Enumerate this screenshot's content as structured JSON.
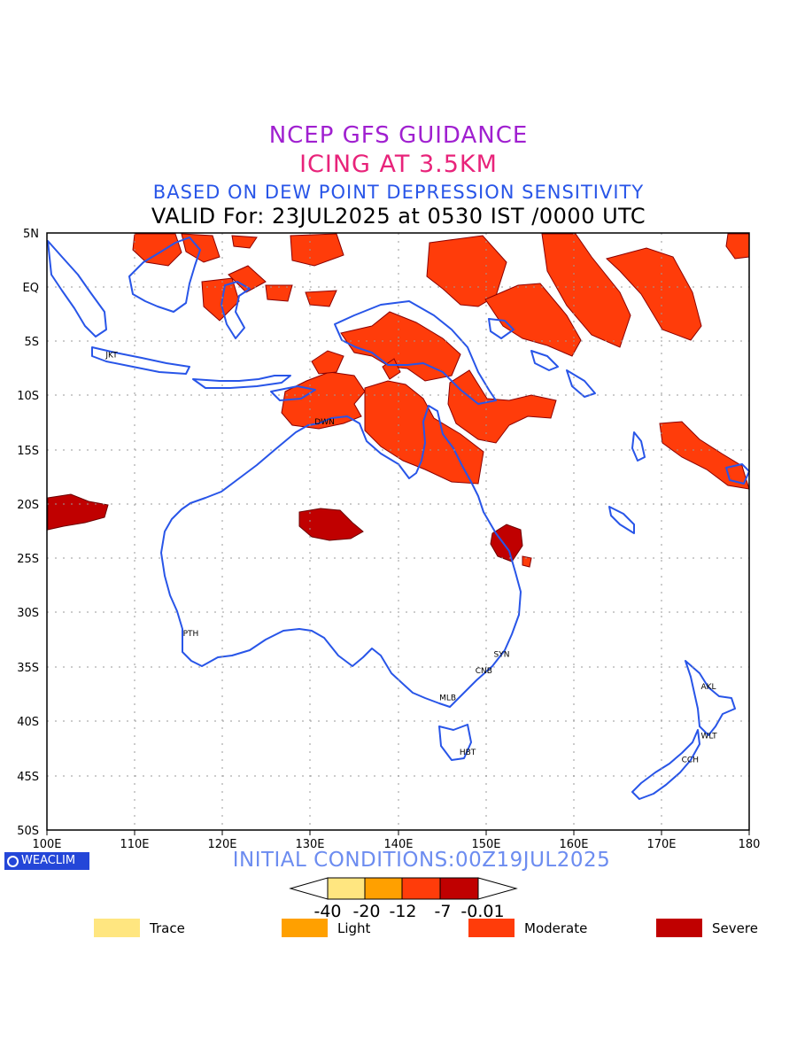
{
  "titles": {
    "line1": "NCEP GFS GUIDANCE",
    "line2": "ICING AT 3.5KM",
    "line3": "BASED ON DEW POINT DEPRESSION SENSITIVITY",
    "line4": "VALID For: 23JUL2025 at 0530 IST /0000 UTC"
  },
  "axes": {
    "x_ticks": [
      "100E",
      "110E",
      "120E",
      "130E",
      "140E",
      "150E",
      "160E",
      "170E",
      "180"
    ],
    "y_ticks": [
      "5N",
      "EQ",
      "5S",
      "10S",
      "15S",
      "20S",
      "25S",
      "30S",
      "35S",
      "40S",
      "45S",
      "50S"
    ]
  },
  "cities": [
    {
      "code": "JKT",
      "lon": 107.0,
      "lat": -6.2
    },
    {
      "code": "DWN",
      "lon": 130.8,
      "lat": -12.4
    },
    {
      "code": "PTH",
      "lon": 115.8,
      "lat": -31.9
    },
    {
      "code": "SYN",
      "lon": 151.2,
      "lat": -33.8
    },
    {
      "code": "CNB",
      "lon": 149.1,
      "lat": -35.3
    },
    {
      "code": "MLB",
      "lon": 145.0,
      "lat": -37.8
    },
    {
      "code": "HBT",
      "lon": 147.3,
      "lat": -42.8
    },
    {
      "code": "AKL",
      "lon": 174.8,
      "lat": -36.8
    },
    {
      "code": "WLT",
      "lon": 174.8,
      "lat": -41.3
    },
    {
      "code": "CCH",
      "lon": 172.6,
      "lat": -43.5
    }
  ],
  "footer": {
    "initial_conditions": "INITIAL CONDITIONS:00Z19JUL2025",
    "brand": "WEACLIM"
  },
  "colorbar": {
    "labels": [
      "-40",
      "-20",
      "-12",
      "-7",
      "-0.01"
    ],
    "colors": [
      "#ffe680",
      "#ffa000",
      "#ff3c0a",
      "#c00000"
    ]
  },
  "legend": [
    {
      "label": "Trace",
      "color": "#ffe680"
    },
    {
      "label": "Light",
      "color": "#ffa000"
    },
    {
      "label": "Moderate",
      "color": "#ff3c0a"
    },
    {
      "label": "Severe",
      "color": "#c00000"
    }
  ],
  "colors": {
    "coastline": "#2855e8",
    "moderate_fill": "#ff3c0a",
    "severe_fill": "#c00000"
  }
}
